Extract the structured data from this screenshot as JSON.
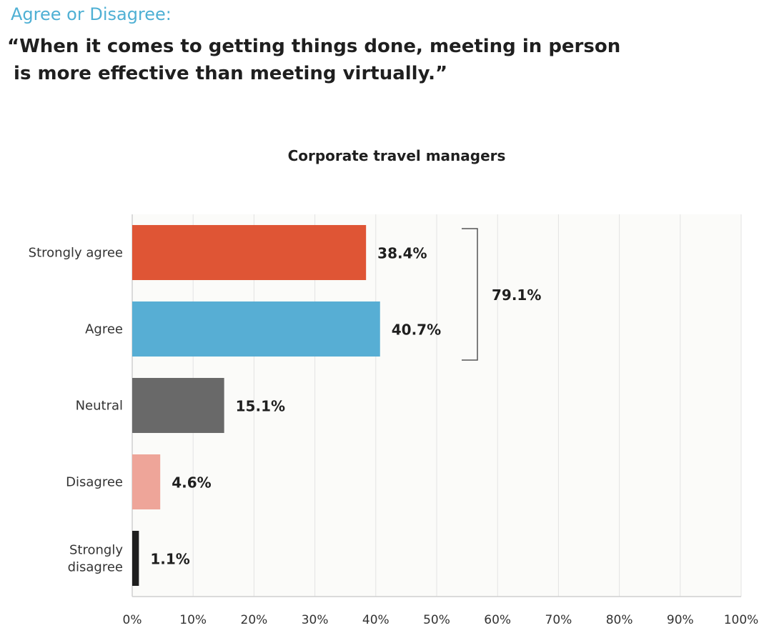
{
  "header": {
    "kicker": "Agree or Disagree:",
    "question_line1": "“When it comes to getting things done, meeting in person",
    "question_line2": " is more effective than meeting virtually.”"
  },
  "chart_data": {
    "type": "bar",
    "orientation": "horizontal",
    "title": "Corporate travel managers",
    "categories": [
      "Strongly agree",
      "Agree",
      "Neutral",
      "Disagree",
      "Strongly\ndisagree"
    ],
    "values": [
      38.4,
      40.7,
      15.1,
      4.6,
      1.1
    ],
    "value_labels": [
      "38.4%",
      "40.7%",
      "15.1%",
      "4.6%",
      "1.1%"
    ],
    "colors": [
      "#df5535",
      "#57aed4",
      "#696969",
      "#eea599",
      "#1e1e1e"
    ],
    "xlim": [
      0,
      100
    ],
    "xticks": [
      "0%",
      "10%",
      "20%",
      "30%",
      "40%",
      "50%",
      "60%",
      "70%",
      "80%",
      "90%",
      "100%"
    ],
    "grid": true,
    "annotation": {
      "label": "79.1%",
      "spans": [
        "Strongly agree",
        "Agree"
      ]
    }
  }
}
